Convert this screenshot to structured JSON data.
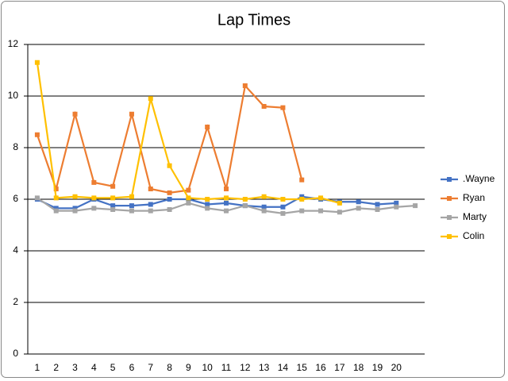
{
  "chart_data": {
    "type": "line",
    "title": "Lap Times",
    "categories": [
      "1",
      "2",
      "3",
      "4",
      "5",
      "6",
      "7",
      "8",
      "9",
      "10",
      "11",
      "12",
      "13",
      "14",
      "15",
      "16",
      "17",
      "18",
      "19",
      "20",
      null
    ],
    "series": [
      {
        "name": ".Wayne",
        "color": "#4472c4",
        "values": [
          6.0,
          5.65,
          5.65,
          6.0,
          5.75,
          5.75,
          5.8,
          6.0,
          6.0,
          5.8,
          5.85,
          5.75,
          5.7,
          5.7,
          6.1,
          6.0,
          5.9,
          5.9,
          5.8,
          5.85,
          null
        ]
      },
      {
        "name": "Ryan",
        "color": "#ed7d31",
        "values": [
          8.5,
          6.4,
          9.3,
          6.65,
          6.5,
          9.3,
          6.4,
          6.25,
          6.35,
          8.8,
          6.4,
          10.4,
          9.6,
          9.55,
          6.75,
          null,
          null,
          null,
          null,
          null,
          null
        ]
      },
      {
        "name": "Marty",
        "color": "#a5a5a5",
        "values": [
          6.05,
          5.55,
          5.55,
          5.65,
          5.6,
          5.55,
          5.55,
          5.6,
          5.85,
          5.65,
          5.55,
          5.75,
          5.55,
          5.45,
          5.55,
          5.55,
          5.5,
          5.65,
          5.6,
          5.7,
          5.75
        ]
      },
      {
        "name": "Colin",
        "color": "#ffc000",
        "values": [
          11.3,
          6.05,
          6.1,
          6.05,
          6.05,
          6.1,
          9.9,
          7.3,
          6.05,
          6.0,
          6.05,
          6.0,
          6.1,
          6.0,
          6.0,
          6.05,
          5.85,
          null,
          null,
          null,
          null
        ]
      }
    ],
    "ylim": [
      0,
      12
    ],
    "yticks": [
      0,
      2,
      4,
      6,
      8,
      10,
      12
    ],
    "grid": true,
    "legend": "right"
  }
}
